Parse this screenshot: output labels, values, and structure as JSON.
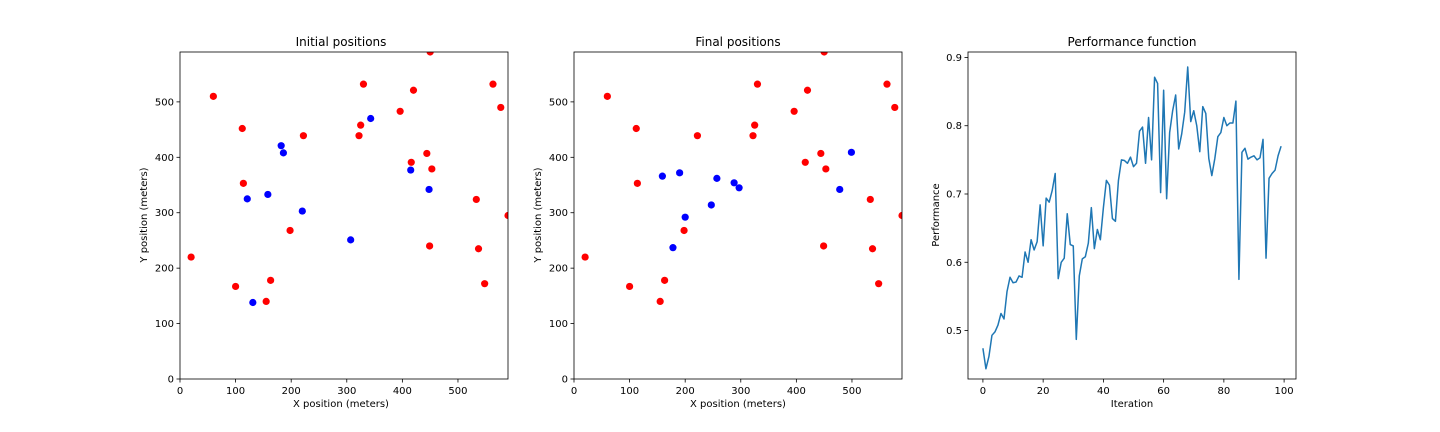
{
  "colors": {
    "red": "#ff0000",
    "blue": "#0000ff",
    "line": "#1f77b4"
  },
  "chart_data": [
    {
      "type": "scatter",
      "title": "Initial positions",
      "xlabel": "X position (meters)",
      "ylabel": "Y position (meters)",
      "xlim": [
        0,
        590
      ],
      "ylim": [
        0,
        590
      ],
      "xticks": [
        0,
        100,
        200,
        300,
        400,
        500
      ],
      "yticks": [
        0,
        100,
        200,
        300,
        400,
        500
      ],
      "series": [
        {
          "color": "red",
          "points": [
            [
              20,
              220
            ],
            [
              60,
              510
            ],
            [
              100,
              167
            ],
            [
              112,
              452
            ],
            [
              114,
              353
            ],
            [
              155,
              140
            ],
            [
              163,
              178
            ],
            [
              198,
              268
            ],
            [
              222,
              439
            ],
            [
              322,
              439
            ],
            [
              325,
              458
            ],
            [
              330,
              532
            ],
            [
              396,
              483
            ],
            [
              416,
              391
            ],
            [
              420,
              521
            ],
            [
              444,
              407
            ],
            [
              449,
              240
            ],
            [
              450,
              590
            ],
            [
              453,
              379
            ],
            [
              533,
              324
            ],
            [
              537,
              235
            ],
            [
              548,
              172
            ],
            [
              563,
              532
            ],
            [
              577,
              490
            ],
            [
              590,
              295
            ]
          ]
        },
        {
          "color": "blue",
          "points": [
            [
              121,
              325
            ],
            [
              131,
              138
            ],
            [
              158,
              333
            ],
            [
              182,
              421
            ],
            [
              186,
              408
            ],
            [
              220,
              303
            ],
            [
              307,
              251
            ],
            [
              343,
              470
            ],
            [
              415,
              377
            ],
            [
              448,
              342
            ]
          ]
        }
      ]
    },
    {
      "type": "scatter",
      "title": "Final positions",
      "xlabel": "X position (meters)",
      "ylabel": "Y position (meters)",
      "xlim": [
        0,
        590
      ],
      "ylim": [
        0,
        590
      ],
      "xticks": [
        0,
        100,
        200,
        300,
        400,
        500
      ],
      "yticks": [
        0,
        100,
        200,
        300,
        400,
        500
      ],
      "series": [
        {
          "color": "red",
          "points": [
            [
              20,
              220
            ],
            [
              60,
              510
            ],
            [
              100,
              167
            ],
            [
              112,
              452
            ],
            [
              114,
              353
            ],
            [
              155,
              140
            ],
            [
              163,
              178
            ],
            [
              198,
              268
            ],
            [
              222,
              439
            ],
            [
              322,
              439
            ],
            [
              325,
              458
            ],
            [
              330,
              532
            ],
            [
              396,
              483
            ],
            [
              416,
              391
            ],
            [
              420,
              521
            ],
            [
              444,
              407
            ],
            [
              449,
              240
            ],
            [
              450,
              590
            ],
            [
              453,
              379
            ],
            [
              533,
              324
            ],
            [
              537,
              235
            ],
            [
              548,
              172
            ],
            [
              563,
              532
            ],
            [
              577,
              490
            ],
            [
              590,
              295
            ]
          ]
        },
        {
          "color": "blue",
          "points": [
            [
              159,
              366
            ],
            [
              178,
              237
            ],
            [
              190,
              372
            ],
            [
              200,
              292
            ],
            [
              247,
              314
            ],
            [
              257,
              362
            ],
            [
              288,
              354
            ],
            [
              297,
              345
            ],
            [
              478,
              342
            ],
            [
              499,
              409
            ]
          ]
        }
      ]
    },
    {
      "type": "line",
      "title": "Performance function",
      "xlabel": "Iteration",
      "ylabel": "Performance",
      "xlim": [
        -4.95,
        103.95
      ],
      "ylim": [
        0.429,
        0.908
      ],
      "xticks": [
        0,
        20,
        40,
        60,
        80,
        100
      ],
      "yticks": [
        0.5,
        0.6,
        0.7,
        0.8,
        0.9
      ],
      "yticklabels": [
        "0.5",
        "0.6",
        "0.7",
        "0.8",
        "0.9"
      ],
      "series": [
        {
          "color": "line",
          "values": [
            0.474,
            0.444,
            0.462,
            0.493,
            0.498,
            0.508,
            0.525,
            0.517,
            0.557,
            0.578,
            0.57,
            0.571,
            0.58,
            0.578,
            0.615,
            0.6,
            0.633,
            0.618,
            0.63,
            0.684,
            0.624,
            0.694,
            0.688,
            0.705,
            0.73,
            0.576,
            0.6,
            0.606,
            0.671,
            0.626,
            0.624,
            0.487,
            0.58,
            0.605,
            0.608,
            0.628,
            0.68,
            0.62,
            0.648,
            0.633,
            0.68,
            0.72,
            0.713,
            0.664,
            0.66,
            0.72,
            0.75,
            0.749,
            0.745,
            0.754,
            0.74,
            0.745,
            0.792,
            0.798,
            0.745,
            0.812,
            0.75,
            0.871,
            0.862,
            0.702,
            0.852,
            0.693,
            0.79,
            0.822,
            0.845,
            0.766,
            0.788,
            0.82,
            0.886,
            0.806,
            0.822,
            0.8,
            0.762,
            0.828,
            0.818,
            0.752,
            0.727,
            0.752,
            0.784,
            0.79,
            0.812,
            0.8,
            0.804,
            0.804,
            0.836,
            0.575,
            0.761,
            0.767,
            0.751,
            0.754,
            0.756,
            0.75,
            0.753,
            0.78,
            0.606,
            0.723,
            0.73,
            0.735,
            0.756,
            0.77
          ]
        }
      ]
    }
  ]
}
